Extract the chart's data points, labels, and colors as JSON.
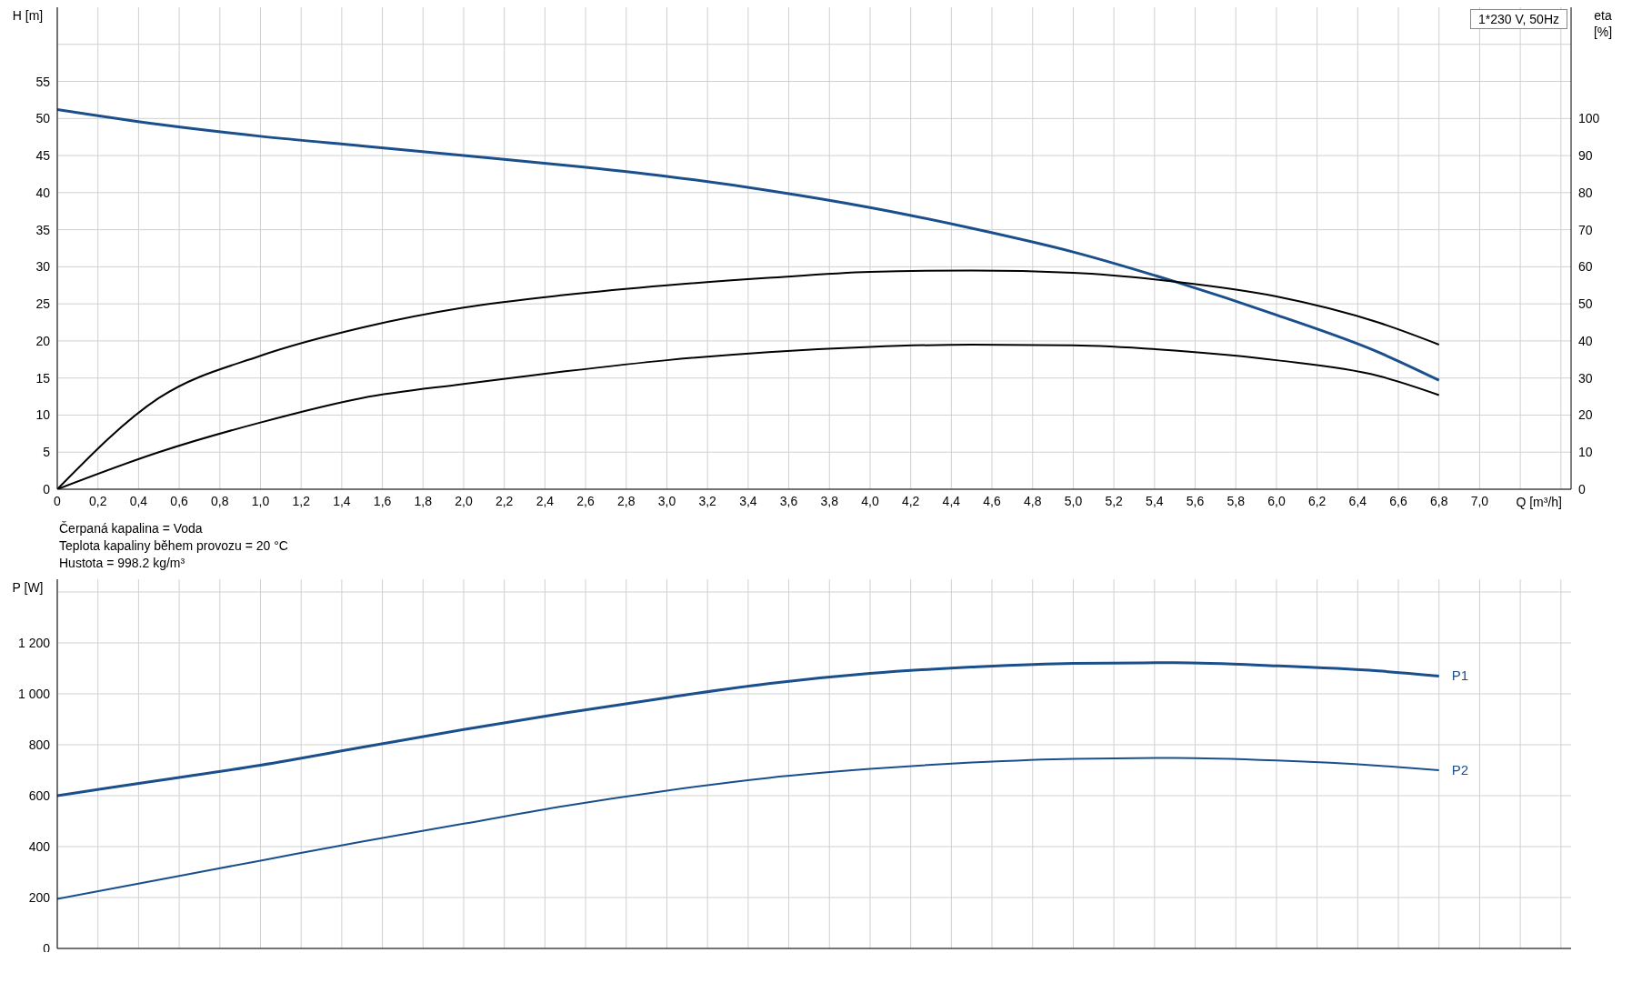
{
  "chart_data": [
    {
      "type": "line",
      "xlabel": "Q [m³/h]",
      "ylabel": "H [m]",
      "y2label": "eta [%]",
      "grid": true,
      "annotations": [
        "1*230 V, 50Hz",
        "Čerpaná kapalina = Voda",
        "Teplota kapaliny během provozu = 20 °C",
        "Hustota = 998.2 kg/m³"
      ],
      "xlim": [
        0,
        7.45
      ],
      "xticks": [
        0,
        {
          "value": 0.2,
          "label": "0,2"
        },
        {
          "value": 0.4,
          "label": "0,4"
        },
        {
          "value": 0.6,
          "label": "0,6"
        },
        {
          "value": 0.8,
          "label": "0,8"
        },
        {
          "value": 1,
          "label": "1,0"
        },
        {
          "value": 1.2,
          "label": "1,2"
        },
        {
          "value": 1.4,
          "label": "1,4"
        },
        {
          "value": 1.6,
          "label": "1,6"
        },
        {
          "value": 1.8,
          "label": "1,8"
        },
        {
          "value": 2,
          "label": "2,0"
        },
        {
          "value": 2.2,
          "label": "2,2"
        },
        {
          "value": 2.4,
          "label": "2,4"
        },
        {
          "value": 2.6,
          "label": "2,6"
        },
        {
          "value": 2.8,
          "label": "2,8"
        },
        {
          "value": 3,
          "label": "3,0"
        },
        {
          "value": 3.2,
          "label": "3,2"
        },
        {
          "value": 3.4,
          "label": "3,4"
        },
        {
          "value": 3.6,
          "label": "3,6"
        },
        {
          "value": 3.8,
          "label": "3,8"
        },
        {
          "value": 4,
          "label": "4,0"
        },
        {
          "value": 4.2,
          "label": "4,2"
        },
        {
          "value": 4.4,
          "label": "4,4"
        },
        {
          "value": 4.6,
          "label": "4,6"
        },
        {
          "value": 4.8,
          "label": "4,8"
        },
        {
          "value": 5,
          "label": "5,0"
        },
        {
          "value": 5.2,
          "label": "5,2"
        },
        {
          "value": 5.4,
          "label": "5,4"
        },
        {
          "value": 5.6,
          "label": "5,6"
        },
        {
          "value": 5.8,
          "label": "5,8"
        },
        {
          "value": 6,
          "label": "6,0"
        },
        {
          "value": 6.2,
          "label": "6,2"
        },
        {
          "value": 6.4,
          "label": "6,4"
        },
        {
          "value": 6.6,
          "label": "6,6"
        },
        {
          "value": 6.8,
          "label": "6,8"
        },
        {
          "value": 7,
          "label": "7,0"
        },
        {
          "value": 7.2,
          "label": null
        },
        {
          "value": 7.4,
          "label": null
        }
      ],
      "ylim": [
        0,
        65
      ],
      "yticks": [
        0,
        5,
        10,
        15,
        20,
        25,
        30,
        35,
        40,
        45,
        50,
        55,
        {
          "value": 60,
          "label": null
        }
      ],
      "y2lim": [
        0,
        130
      ],
      "y2ticks": [
        0,
        10,
        20,
        30,
        40,
        50,
        60,
        70,
        80,
        90,
        100
      ],
      "x": [
        0,
        0.5,
        1,
        1.5,
        2,
        2.5,
        3,
        3.5,
        4,
        4.5,
        5,
        5.5,
        6,
        6.5,
        6.8
      ],
      "series": [
        {
          "color": "#1a4f8c",
          "values": [
            51.2,
            49.2,
            47.6,
            46.3,
            45,
            43.7,
            42.2,
            40.3,
            38,
            35.2,
            32,
            28,
            23.5,
            18.5,
            14.7
          ]
        },
        {
          "color": "#000000",
          "axis": "y2",
          "values": [
            0,
            24.6,
            36,
            43.6,
            49,
            52.4,
            55,
            57,
            58.6,
            59,
            58.4,
            56,
            52,
            45,
            39
          ]
        },
        {
          "color": "#000000",
          "axis": "y2",
          "values": [
            0,
            10,
            18,
            24.6,
            28.4,
            31.8,
            34.8,
            37,
            38.4,
            39,
            38.8,
            37.4,
            34.8,
            30.6,
            25.4
          ]
        }
      ]
    },
    {
      "type": "line",
      "ylabel": "P [W]",
      "grid": true,
      "tick_labels": "y",
      "xlim": [
        0,
        7.45
      ],
      "xticks": [
        0,
        0.2,
        0.4,
        0.6,
        0.8,
        1,
        1.2,
        1.4,
        1.6,
        1.8,
        2,
        2.2,
        2.4,
        2.6,
        2.8,
        3,
        3.2,
        3.4,
        3.6,
        3.8,
        4,
        4.2,
        4.4,
        4.6,
        4.8,
        5,
        5.2,
        5.4,
        5.6,
        5.8,
        6,
        6.2,
        6.4,
        6.6,
        6.8,
        7,
        7.2,
        7.4
      ],
      "ylim": [
        0,
        1450
      ],
      "yticks": [
        0,
        200,
        400,
        600,
        800,
        {
          "value": 1000,
          "label": "1 000"
        },
        {
          "value": 1200,
          "label": "1 200"
        },
        {
          "value": 1400,
          "label": null
        }
      ],
      "x": [
        0,
        0.5,
        1,
        1.5,
        2,
        2.5,
        3,
        3.5,
        4,
        4.5,
        5,
        5.5,
        6,
        6.5,
        6.8
      ],
      "series": [
        {
          "name": "P1",
          "color": "#1a4f8c",
          "values": [
            600,
            660,
            720,
            790,
            860,
            925,
            985,
            1040,
            1080,
            1105,
            1120,
            1122,
            1110,
            1090,
            1070
          ]
        },
        {
          "name": "P2",
          "color": "#1a4f8c",
          "values": [
            195,
            270,
            345,
            420,
            490,
            560,
            620,
            670,
            705,
            730,
            745,
            748,
            738,
            718,
            700
          ]
        }
      ]
    }
  ]
}
